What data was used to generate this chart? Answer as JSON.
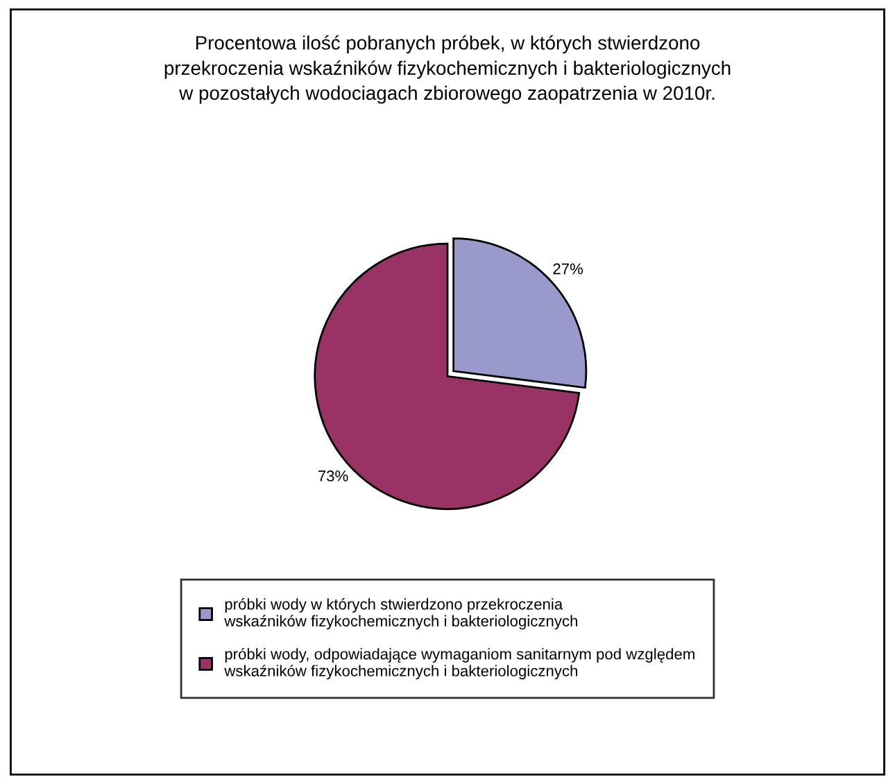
{
  "chart_data": {
    "type": "pie",
    "title": "Procentowa ilość pobranych próbek, w których stwierdzono\nprzekroczenia wskaźników fizykochemicznych i bakteriologicznych\nw pozostałych wodociagach zbiorowego zaopatrzenia w 2010r.",
    "categories": [
      "próbki wody w których stwierdzono przekroczenia wskaźników fizykochemicznych i bakteriologicznych",
      "próbki wody, odpowiadające wymaganiom sanitarnym pod względem wskaźników fizykochemicznych i bakteriologicznych"
    ],
    "values": [
      27,
      73
    ],
    "colors": [
      "#9999cc",
      "#993366"
    ],
    "value_labels": [
      "27%",
      "73%"
    ],
    "legend": "bottom"
  }
}
